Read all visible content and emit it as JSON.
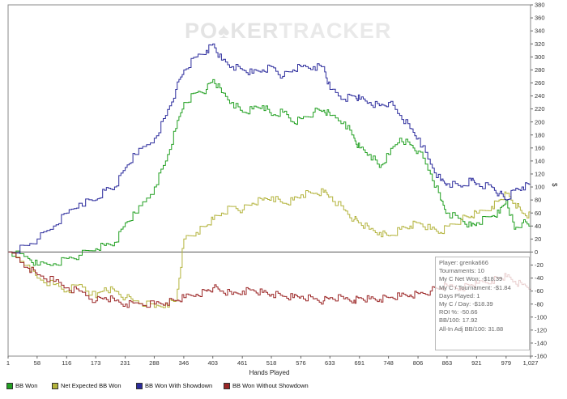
{
  "watermark": {
    "brand_part1": "PO",
    "brand_chip": "♠",
    "brand_part2": "KER",
    "brand_part3": "TRACKER"
  },
  "chart_data": {
    "type": "line",
    "xlabel": "Hands Played",
    "ylabel": "$",
    "xlim": [
      1,
      1027
    ],
    "ylim": [
      -160,
      380
    ],
    "x_ticks": [
      1,
      58,
      116,
      173,
      231,
      288,
      346,
      403,
      461,
      518,
      576,
      633,
      691,
      748,
      806,
      863,
      921,
      979,
      1027
    ],
    "y_ticks": [
      -160,
      -140,
      -120,
      -100,
      -80,
      -60,
      -40,
      -20,
      0,
      20,
      40,
      60,
      80,
      100,
      120,
      140,
      160,
      180,
      200,
      220,
      240,
      260,
      280,
      300,
      320,
      340,
      360,
      380
    ],
    "x": [
      1,
      40,
      58,
      90,
      116,
      140,
      173,
      190,
      210,
      231,
      250,
      288,
      310,
      330,
      346,
      370,
      390,
      403,
      420,
      440,
      461,
      480,
      500,
      518,
      540,
      560,
      576,
      600,
      620,
      633,
      660,
      680,
      691,
      710,
      730,
      748,
      770,
      790,
      806,
      830,
      850,
      863,
      890,
      910,
      921,
      950,
      965,
      979,
      995,
      1010,
      1027
    ],
    "series": [
      {
        "name": "BB Won",
        "color": "#22a022",
        "values": [
          0,
          -10,
          -20,
          -18,
          -10,
          -5,
          5,
          10,
          15,
          45,
          60,
          100,
          140,
          190,
          230,
          245,
          250,
          265,
          245,
          230,
          215,
          220,
          225,
          210,
          215,
          200,
          205,
          215,
          218,
          210,
          200,
          175,
          160,
          150,
          130,
          150,
          175,
          165,
          155,
          120,
          80,
          60,
          50,
          40,
          45,
          55,
          60,
          80,
          35,
          45,
          40
        ]
      },
      {
        "name": "Net Expected BB Won",
        "color": "#b3b33c",
        "values": [
          0,
          -20,
          -40,
          -50,
          -60,
          -50,
          -70,
          -55,
          -60,
          -70,
          -75,
          -85,
          -80,
          -75,
          20,
          30,
          40,
          50,
          60,
          70,
          65,
          75,
          80,
          85,
          75,
          80,
          88,
          90,
          92,
          85,
          65,
          50,
          45,
          35,
          30,
          25,
          35,
          40,
          45,
          35,
          30,
          40,
          50,
          55,
          60,
          70,
          80,
          90,
          75,
          60,
          55
        ]
      },
      {
        "name": "BB Won With Showdown",
        "color": "#2b2b9c",
        "values": [
          0,
          10,
          20,
          40,
          60,
          75,
          80,
          95,
          100,
          130,
          150,
          175,
          210,
          250,
          280,
          300,
          310,
          320,
          295,
          285,
          280,
          275,
          280,
          285,
          270,
          280,
          285,
          285,
          285,
          250,
          235,
          240,
          235,
          230,
          225,
          230,
          210,
          190,
          175,
          135,
          110,
          105,
          100,
          110,
          105,
          100,
          90,
          80,
          95,
          100,
          105
        ]
      },
      {
        "name": "BB Won Without Showdown",
        "color": "#9b2626",
        "values": [
          0,
          -25,
          -35,
          -45,
          -55,
          -60,
          -75,
          -70,
          -75,
          -80,
          -78,
          -80,
          -78,
          -75,
          -70,
          -65,
          -60,
          -55,
          -60,
          -65,
          -60,
          -58,
          -62,
          -65,
          -68,
          -70,
          -68,
          -72,
          -75,
          -70,
          -72,
          -74,
          -70,
          -72,
          -73,
          -70,
          -68,
          -66,
          -64,
          -60,
          -55,
          -52,
          -55,
          -50,
          -48,
          -45,
          -40,
          -38,
          -45,
          -50,
          -52
        ]
      }
    ]
  },
  "stats": {
    "player": "Player: grenka666",
    "tournaments": "Tournaments: 10",
    "net_won": "My C Net Won: -$18.39",
    "per_tournament": "My C / Tournament: -$1.84",
    "days_played": "Days Played: 1",
    "per_day": "My C / Day: -$18.39",
    "roi": "ROI %: -50.66",
    "bb100": "BB/100: 17.92",
    "allin_bb100": "All-In Adj BB/100: 31.88"
  },
  "legend": {
    "items": [
      {
        "label": "BB Won",
        "color": "#22a022"
      },
      {
        "label": "Net Expected BB Won",
        "color": "#b3b33c"
      },
      {
        "label": "BB Won With Showdown",
        "color": "#2b2b9c"
      },
      {
        "label": "BB Won Without Showdown",
        "color": "#9b2626"
      }
    ]
  }
}
